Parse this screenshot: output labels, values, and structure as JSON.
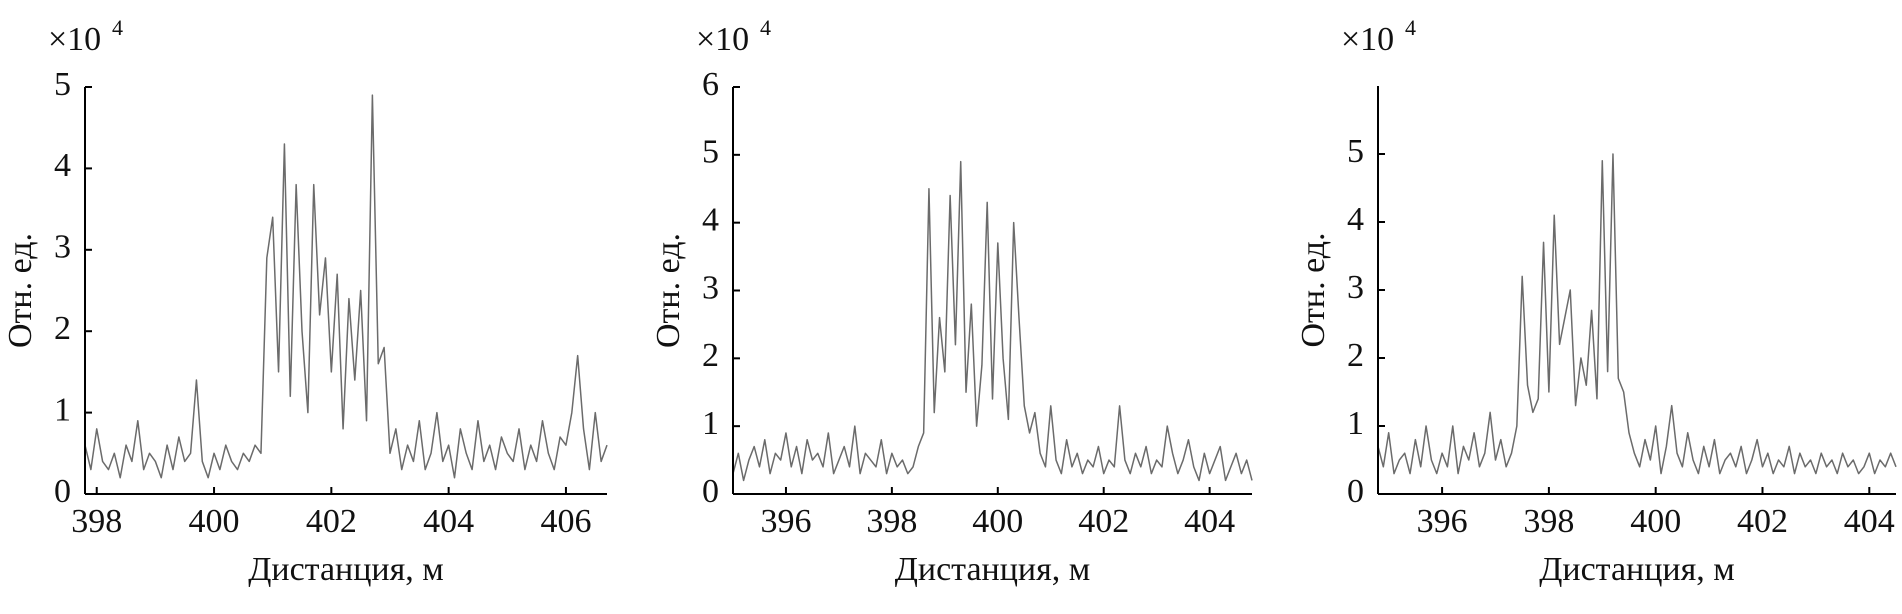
{
  "chart_data": [
    {
      "type": "line",
      "color": "#6b6b6b",
      "y_multiplier": "×10",
      "y_multiplier_exponent": "4",
      "y_label": "Отн. ед.",
      "x_label": "Дистанция, м",
      "xlim": [
        397.8,
        406.7
      ],
      "xticks": [
        398,
        400,
        402,
        404,
        406
      ],
      "ylim": [
        0,
        5
      ],
      "yticks": [
        0,
        1,
        2,
        3,
        4,
        5
      ],
      "x": [
        397.8,
        397.9,
        398,
        398.1,
        398.2,
        398.3,
        398.4,
        398.5,
        398.6,
        398.7,
        398.8,
        398.9,
        399,
        399.1,
        399.2,
        399.3,
        399.4,
        399.5,
        399.6,
        399.7,
        399.8,
        399.9,
        400,
        400.1,
        400.2,
        400.3,
        400.4,
        400.5,
        400.6,
        400.7,
        400.8,
        400.9,
        401,
        401.1,
        401.2,
        401.3,
        401.4,
        401.5,
        401.6,
        401.7,
        401.8,
        401.9,
        402,
        402.1,
        402.2,
        402.3,
        402.4,
        402.5,
        402.6,
        402.7,
        402.8,
        402.9,
        403,
        403.1,
        403.2,
        403.3,
        403.4,
        403.5,
        403.6,
        403.7,
        403.8,
        403.9,
        404,
        404.1,
        404.2,
        404.3,
        404.4,
        404.5,
        404.6,
        404.7,
        404.8,
        404.9,
        405,
        405.1,
        405.2,
        405.3,
        405.4,
        405.5,
        405.6,
        405.7,
        405.8,
        405.9,
        406,
        406.1,
        406.2,
        406.3,
        406.4,
        406.5,
        406.6,
        406.7
      ],
      "values": [
        0.6,
        0.3,
        0.8,
        0.4,
        0.3,
        0.5,
        0.2,
        0.6,
        0.4,
        0.9,
        0.3,
        0.5,
        0.4,
        0.2,
        0.6,
        0.3,
        0.7,
        0.4,
        0.5,
        1.4,
        0.4,
        0.2,
        0.5,
        0.3,
        0.6,
        0.4,
        0.3,
        0.5,
        0.4,
        0.6,
        0.5,
        2.9,
        3.4,
        1.5,
        4.3,
        1.2,
        3.8,
        2.0,
        1.0,
        3.8,
        2.2,
        2.9,
        1.5,
        2.7,
        0.8,
        2.4,
        1.4,
        2.5,
        0.9,
        4.9,
        1.6,
        1.8,
        0.5,
        0.8,
        0.3,
        0.6,
        0.4,
        0.9,
        0.3,
        0.5,
        1.0,
        0.4,
        0.6,
        0.2,
        0.8,
        0.5,
        0.3,
        0.9,
        0.4,
        0.6,
        0.3,
        0.7,
        0.5,
        0.4,
        0.8,
        0.3,
        0.6,
        0.4,
        0.9,
        0.5,
        0.3,
        0.7,
        0.6,
        1.0,
        1.7,
        0.8,
        0.3,
        1.0,
        0.4,
        0.6
      ]
    },
    {
      "type": "line",
      "color": "#6b6b6b",
      "y_multiplier": "×10",
      "y_multiplier_exponent": "4",
      "y_label": "Отн. ед.",
      "x_label": "Дистанция, м",
      "xlim": [
        395,
        404.8
      ],
      "xticks": [
        396,
        398,
        400,
        402,
        404
      ],
      "ylim": [
        0,
        6
      ],
      "yticks": [
        0,
        1,
        2,
        3,
        4,
        5,
        6
      ],
      "x": [
        395,
        395.1,
        395.2,
        395.3,
        395.4,
        395.5,
        395.6,
        395.7,
        395.8,
        395.9,
        396,
        396.1,
        396.2,
        396.3,
        396.4,
        396.5,
        396.6,
        396.7,
        396.8,
        396.9,
        397,
        397.1,
        397.2,
        397.3,
        397.4,
        397.5,
        397.6,
        397.7,
        397.8,
        397.9,
        398,
        398.1,
        398.2,
        398.3,
        398.4,
        398.5,
        398.6,
        398.7,
        398.8,
        398.9,
        399,
        399.1,
        399.2,
        399.3,
        399.4,
        399.5,
        399.6,
        399.7,
        399.8,
        399.9,
        400,
        400.1,
        400.2,
        400.3,
        400.4,
        400.5,
        400.6,
        400.7,
        400.8,
        400.9,
        401,
        401.1,
        401.2,
        401.3,
        401.4,
        401.5,
        401.6,
        401.7,
        401.8,
        401.9,
        402,
        402.1,
        402.2,
        402.3,
        402.4,
        402.5,
        402.6,
        402.7,
        402.8,
        402.9,
        403,
        403.1,
        403.2,
        403.3,
        403.4,
        403.5,
        403.6,
        403.7,
        403.8,
        403.9,
        404,
        404.1,
        404.2,
        404.3,
        404.4,
        404.5,
        404.6,
        404.7,
        404.8
      ],
      "values": [
        0.3,
        0.6,
        0.2,
        0.5,
        0.7,
        0.4,
        0.8,
        0.3,
        0.6,
        0.5,
        0.9,
        0.4,
        0.7,
        0.3,
        0.8,
        0.5,
        0.6,
        0.4,
        0.9,
        0.3,
        0.5,
        0.7,
        0.4,
        1.0,
        0.3,
        0.6,
        0.5,
        0.4,
        0.8,
        0.3,
        0.6,
        0.4,
        0.5,
        0.3,
        0.4,
        0.7,
        0.9,
        4.5,
        1.2,
        2.6,
        1.8,
        4.4,
        2.2,
        4.9,
        1.5,
        2.8,
        1.0,
        1.9,
        4.3,
        1.4,
        3.7,
        2.0,
        1.1,
        4.0,
        2.6,
        1.3,
        0.9,
        1.2,
        0.6,
        0.4,
        1.3,
        0.5,
        0.3,
        0.8,
        0.4,
        0.6,
        0.3,
        0.5,
        0.4,
        0.7,
        0.3,
        0.5,
        0.4,
        1.3,
        0.5,
        0.3,
        0.6,
        0.4,
        0.7,
        0.3,
        0.5,
        0.4,
        1.0,
        0.6,
        0.3,
        0.5,
        0.8,
        0.4,
        0.2,
        0.6,
        0.3,
        0.5,
        0.7,
        0.2,
        0.4,
        0.6,
        0.3,
        0.5,
        0.2
      ]
    },
    {
      "type": "line",
      "color": "#6b6b6b",
      "y_multiplier": "×10",
      "y_multiplier_exponent": "4",
      "y_label": "Отн. ед.",
      "x_label": "Дистанция, м",
      "xlim": [
        394.8,
        404.5
      ],
      "xticks": [
        396,
        398,
        400,
        402,
        404
      ],
      "ylim": [
        0,
        6
      ],
      "yticks": [
        0,
        1,
        2,
        3,
        4,
        5
      ],
      "x": [
        394.8,
        394.9,
        395,
        395.1,
        395.2,
        395.3,
        395.4,
        395.5,
        395.6,
        395.7,
        395.8,
        395.9,
        396,
        396.1,
        396.2,
        396.3,
        396.4,
        396.5,
        396.6,
        396.7,
        396.8,
        396.9,
        397,
        397.1,
        397.2,
        397.3,
        397.4,
        397.5,
        397.6,
        397.7,
        397.8,
        397.9,
        398,
        398.1,
        398.2,
        398.3,
        398.4,
        398.5,
        398.6,
        398.7,
        398.8,
        398.9,
        399,
        399.1,
        399.2,
        399.3,
        399.4,
        399.5,
        399.6,
        399.7,
        399.8,
        399.9,
        400,
        400.1,
        400.2,
        400.3,
        400.4,
        400.5,
        400.6,
        400.7,
        400.8,
        400.9,
        401,
        401.1,
        401.2,
        401.3,
        401.4,
        401.5,
        401.6,
        401.7,
        401.8,
        401.9,
        402,
        402.1,
        402.2,
        402.3,
        402.4,
        402.5,
        402.6,
        402.7,
        402.8,
        402.9,
        403,
        403.1,
        403.2,
        403.3,
        403.4,
        403.5,
        403.6,
        403.7,
        403.8,
        403.9,
        404,
        404.1,
        404.2,
        404.3,
        404.4,
        404.5
      ],
      "values": [
        0.7,
        0.4,
        0.9,
        0.3,
        0.5,
        0.6,
        0.3,
        0.8,
        0.4,
        1.0,
        0.5,
        0.3,
        0.6,
        0.4,
        1.0,
        0.3,
        0.7,
        0.5,
        0.9,
        0.4,
        0.6,
        1.2,
        0.5,
        0.8,
        0.4,
        0.6,
        1.0,
        3.2,
        1.6,
        1.2,
        1.4,
        3.7,
        1.5,
        4.1,
        2.2,
        2.6,
        3.0,
        1.3,
        2.0,
        1.6,
        2.7,
        1.4,
        4.9,
        1.8,
        5.0,
        1.7,
        1.5,
        0.9,
        0.6,
        0.4,
        0.8,
        0.5,
        1.0,
        0.3,
        0.7,
        1.3,
        0.6,
        0.4,
        0.9,
        0.5,
        0.3,
        0.7,
        0.4,
        0.8,
        0.3,
        0.5,
        0.6,
        0.4,
        0.7,
        0.3,
        0.5,
        0.8,
        0.4,
        0.6,
        0.3,
        0.5,
        0.4,
        0.7,
        0.3,
        0.6,
        0.4,
        0.5,
        0.3,
        0.6,
        0.4,
        0.5,
        0.3,
        0.6,
        0.4,
        0.5,
        0.3,
        0.4,
        0.6,
        0.3,
        0.5,
        0.4,
        0.6,
        0.4
      ]
    }
  ]
}
